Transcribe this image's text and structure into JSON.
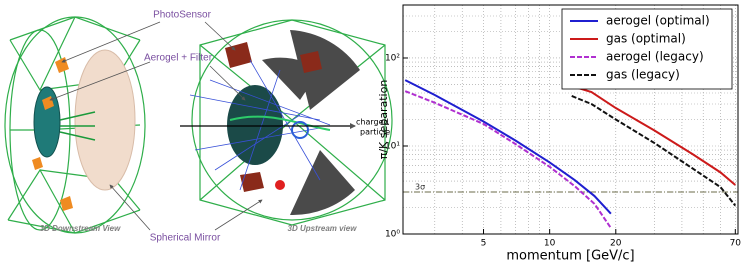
{
  "diagram": {
    "photosensor": "PhotoSensor",
    "aerogel_filter": "Aerogel + Filter",
    "spherical_mirror": "Spherical Mirror",
    "downstream_view": "3D Downstream View",
    "upstream_view": "3D Upstream view",
    "charged_particle": [
      "charged",
      "particle"
    ]
  },
  "chart_data": {
    "type": "line",
    "xlabel": "momentum [GeV/c]",
    "ylabel": "π/K separation",
    "log_x": true,
    "log_y": true,
    "grid": true,
    "legend": "upper right",
    "xlim": [
      2.15,
      72
    ],
    "ylim": [
      1,
      400
    ],
    "xticks": [
      5,
      10,
      20,
      70
    ],
    "yticks": [
      {
        "value": 1,
        "label": "10⁰"
      },
      {
        "value": 10,
        "label": "10¹"
      },
      {
        "value": 100,
        "label": "10²"
      }
    ],
    "xminor": [
      3,
      4,
      6,
      7,
      8,
      9,
      30,
      40,
      50,
      60
    ],
    "yminor": [
      2,
      3,
      4,
      5,
      6,
      7,
      8,
      9,
      20,
      30,
      40,
      50,
      60,
      70,
      80,
      90,
      200,
      300
    ],
    "hline": {
      "value": 3,
      "label": "3σ",
      "color": "#6b6b4a"
    },
    "series": [
      {
        "name": "aerogel (optimal)",
        "color": "#1f1fd0",
        "dash": "solid",
        "x": [
          2.2,
          3,
          5,
          7,
          10,
          13,
          16,
          19
        ],
        "values": [
          56,
          38,
          19,
          11.5,
          6.5,
          4.1,
          2.7,
          1.7
        ]
      },
      {
        "name": "gas (optimal)",
        "color": "#cc1a1a",
        "dash": "solid",
        "x": [
          12.6,
          15.5,
          20,
          30,
          45,
          60,
          70
        ],
        "values": [
          48,
          41,
          27,
          15,
          8,
          5,
          3.6
        ]
      },
      {
        "name": "aerogel (legacy)",
        "color": "#b030d0",
        "dash": "dashed",
        "x": [
          2.2,
          3,
          5,
          7,
          10,
          13,
          16,
          19
        ],
        "values": [
          42,
          31,
          17.8,
          10.5,
          5.8,
          3.5,
          2.2,
          1.17
        ]
      },
      {
        "name": "gas (legacy)",
        "color": "#111111",
        "dash": "dashed",
        "x": [
          12.6,
          15.5,
          20,
          30,
          45,
          60,
          70
        ],
        "values": [
          37,
          30,
          20,
          10.8,
          5.5,
          3.4,
          2.1
        ]
      }
    ]
  }
}
